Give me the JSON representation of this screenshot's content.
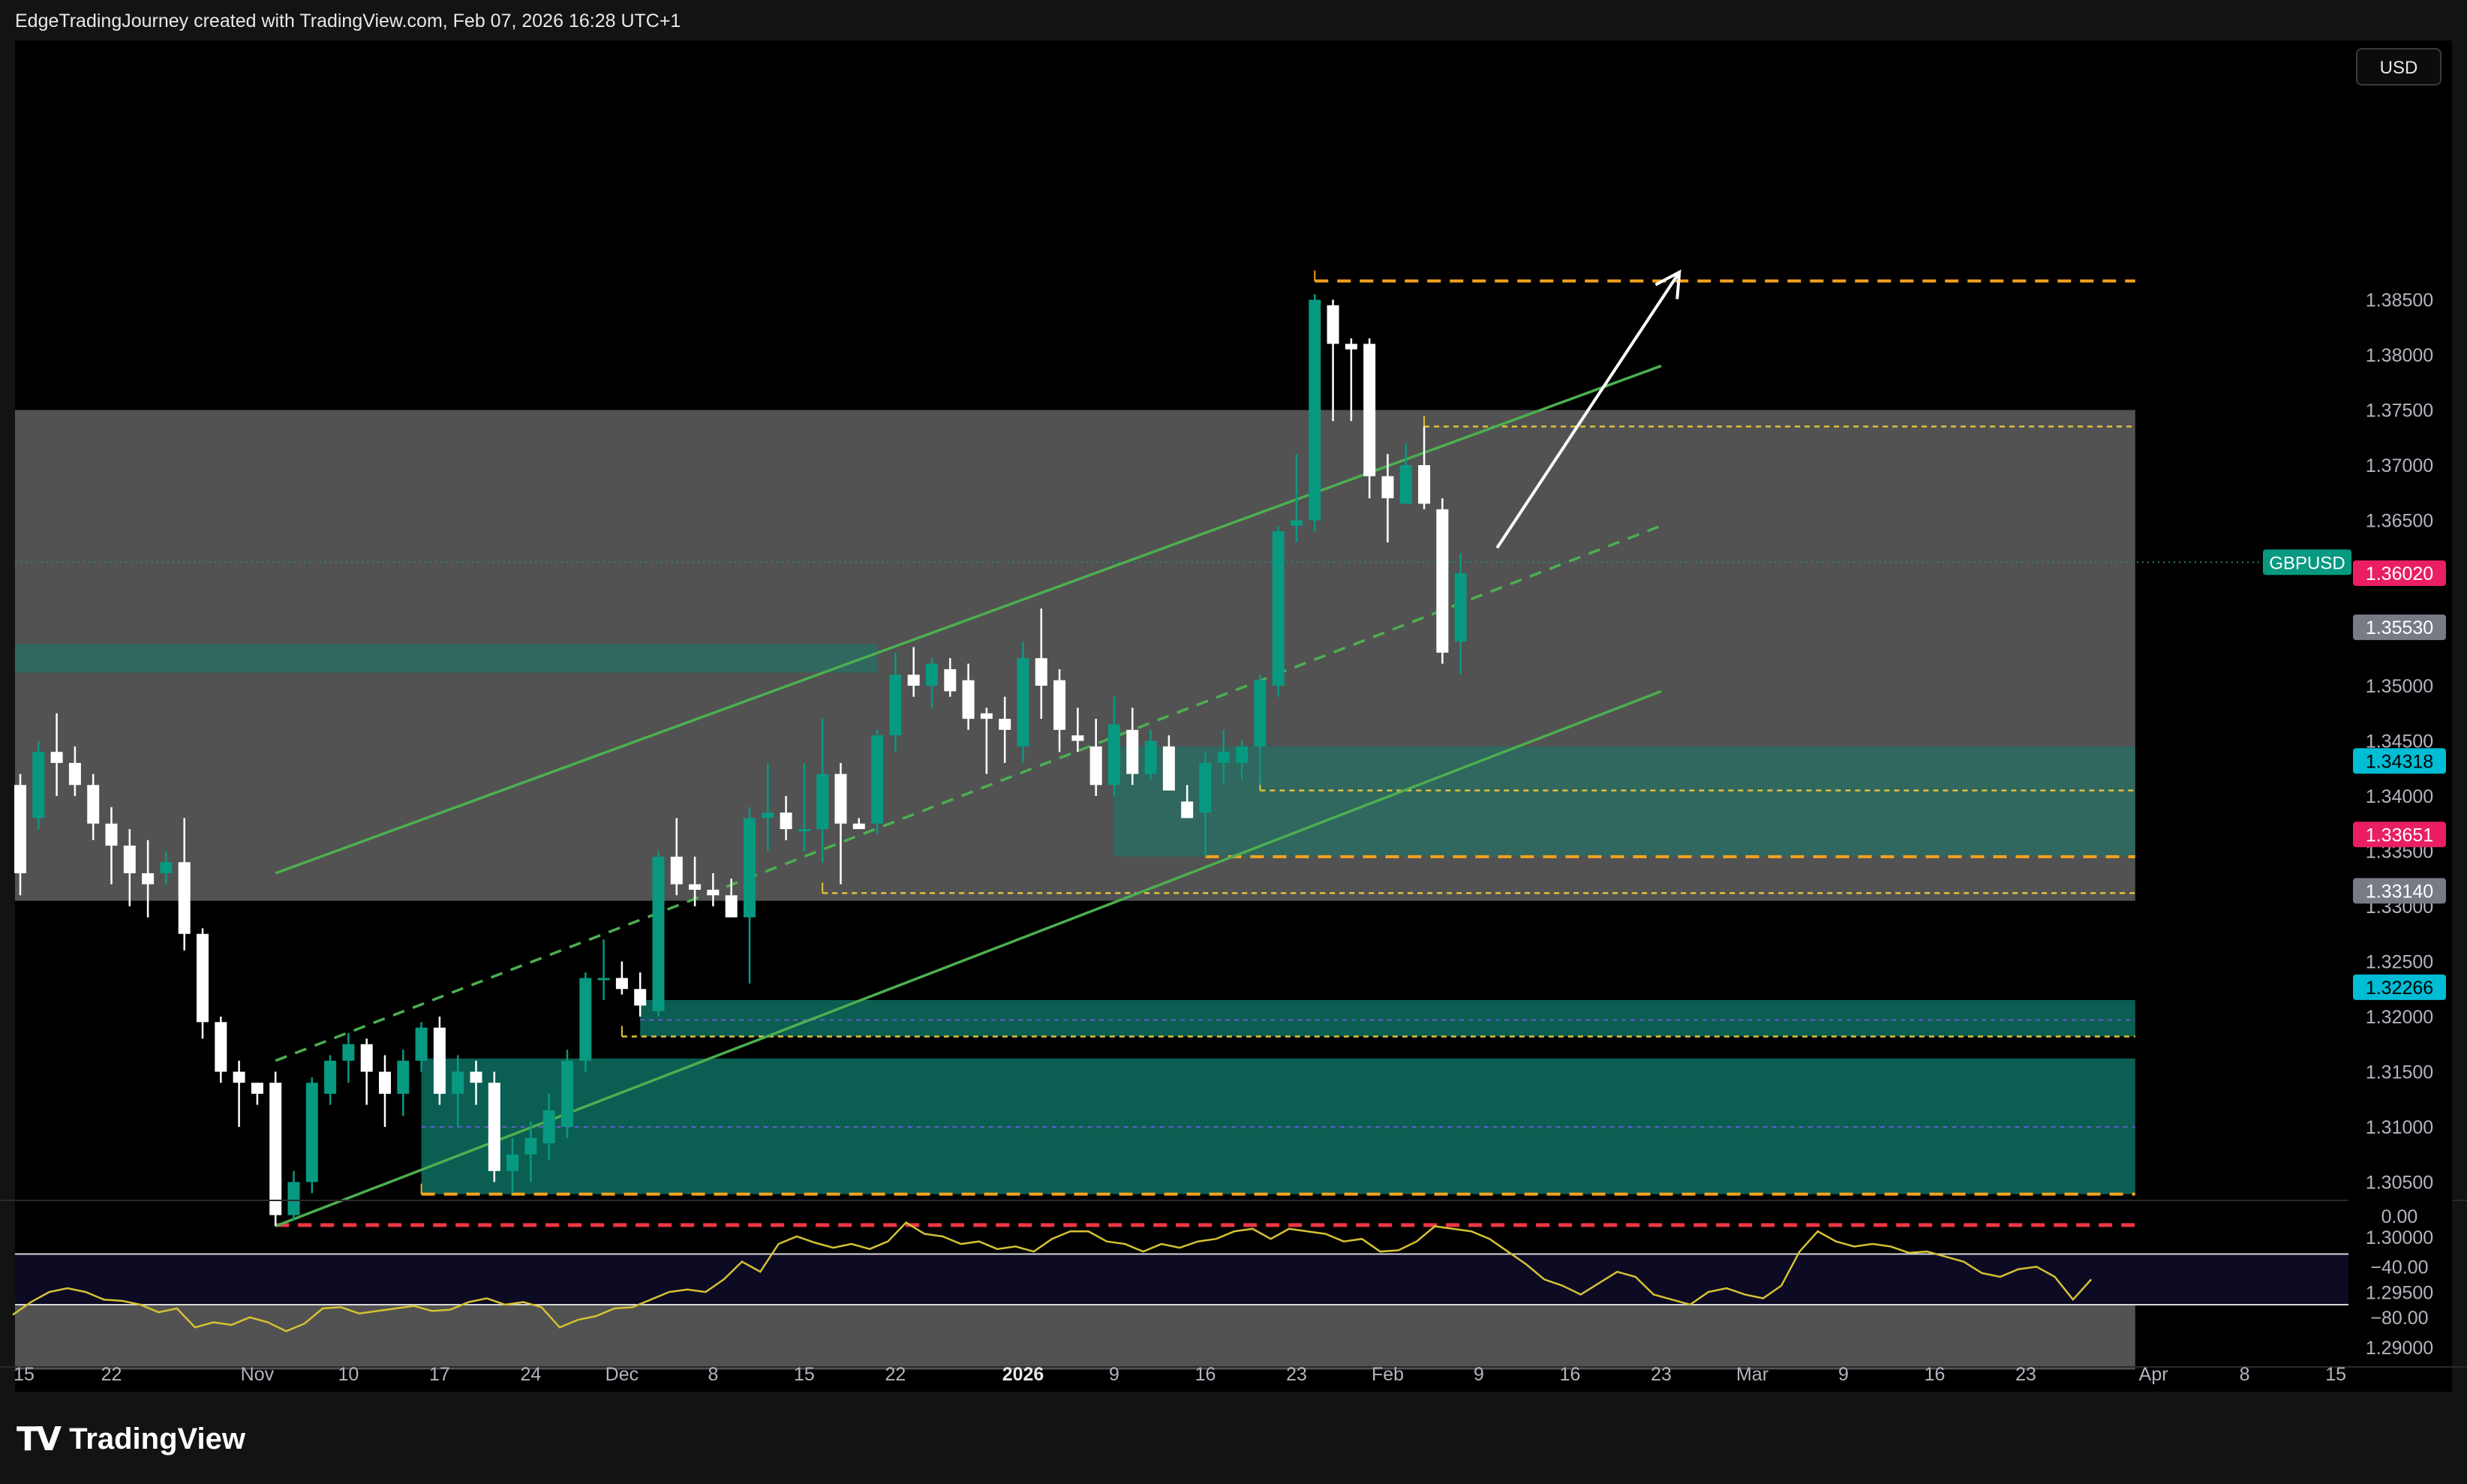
{
  "header": {
    "credit": "EdgeTradingJourney created with TradingView.com, Feb 07, 2026 16:28 UTC+1"
  },
  "toolbar": {
    "currency_button": "USD"
  },
  "branding": {
    "logo_text": "TradingView",
    "logo_icon": "tradingview-logo-icon"
  },
  "colors": {
    "background": "#000000",
    "zone_gray": "#525252",
    "zone_teal": "#0b5e52",
    "zone_teal_light": "#2a6b62",
    "candle_up": "#089981",
    "candle_down": "#ffffff",
    "channel_green": "#4caf50",
    "level_orange": "#f6a21e",
    "level_red": "#f23645",
    "rsi_line": "#d4c232"
  },
  "symbol": {
    "label": "GBPUSD",
    "last_price": "1.36020"
  },
  "price_axis": {
    "ticks": [
      {
        "value": 1.385,
        "label": "1.38500"
      },
      {
        "value": 1.38,
        "label": "1.38000"
      },
      {
        "value": 1.375,
        "label": "1.37500"
      },
      {
        "value": 1.37,
        "label": "1.37000"
      },
      {
        "value": 1.365,
        "label": "1.36500"
      },
      {
        "value": 1.35,
        "label": "1.35000"
      },
      {
        "value": 1.345,
        "label": "1.34500"
      },
      {
        "value": 1.34,
        "label": "1.34000"
      },
      {
        "value": 1.335,
        "label": "1.33500"
      },
      {
        "value": 1.33,
        "label": "1.33000"
      },
      {
        "value": 1.325,
        "label": "1.32500"
      },
      {
        "value": 1.32,
        "label": "1.32000"
      },
      {
        "value": 1.315,
        "label": "1.31500"
      },
      {
        "value": 1.31,
        "label": "1.31000"
      },
      {
        "value": 1.305,
        "label": "1.30500"
      },
      {
        "value": 1.3,
        "label": "1.30000"
      },
      {
        "value": 1.295,
        "label": "1.29500"
      },
      {
        "value": 1.29,
        "label": "1.29000"
      }
    ],
    "badges": [
      {
        "value": 1.3602,
        "label": "1.36020",
        "color": "#e91e63",
        "text_color": "#ffffff"
      },
      {
        "value": 1.3553,
        "label": "1.35530",
        "color": "#787b86",
        "text_color": "#ffffff"
      },
      {
        "value": 1.34318,
        "label": "1.34318",
        "color": "#00bcd4",
        "text_color": "#000000"
      },
      {
        "value": 1.33651,
        "label": "1.33651",
        "color": "#e91e63",
        "text_color": "#ffffff"
      },
      {
        "value": 1.3314,
        "label": "1.33140",
        "color": "#787b86",
        "text_color": "#ffffff"
      },
      {
        "value": 1.32266,
        "label": "1.32266",
        "color": "#00bcd4",
        "text_color": "#000000"
      }
    ]
  },
  "time_axis": {
    "labels": [
      {
        "idx": 0,
        "label": "15"
      },
      {
        "idx": 5,
        "label": "22"
      },
      {
        "idx": 13,
        "label": "Nov"
      },
      {
        "idx": 18,
        "label": "10"
      },
      {
        "idx": 23,
        "label": "17"
      },
      {
        "idx": 28,
        "label": "24"
      },
      {
        "idx": 33,
        "label": "Dec"
      },
      {
        "idx": 38,
        "label": "8"
      },
      {
        "idx": 43,
        "label": "15"
      },
      {
        "idx": 48,
        "label": "22"
      },
      {
        "idx": 55,
        "label": "2026",
        "bold": true
      },
      {
        "idx": 60,
        "label": "9"
      },
      {
        "idx": 65,
        "label": "16"
      },
      {
        "idx": 70,
        "label": "23"
      },
      {
        "idx": 75,
        "label": "Feb"
      },
      {
        "idx": 80,
        "label": "9"
      },
      {
        "idx": 85,
        "label": "16"
      },
      {
        "idx": 90,
        "label": "23"
      },
      {
        "idx": 95,
        "label": "Mar"
      },
      {
        "idx": 100,
        "label": "9"
      },
      {
        "idx": 105,
        "label": "16"
      },
      {
        "idx": 110,
        "label": "23"
      },
      {
        "idx": 117,
        "label": "Apr"
      },
      {
        "idx": 122,
        "label": "8"
      },
      {
        "idx": 127,
        "label": "15"
      }
    ]
  },
  "rsi_axis": {
    "ticks": [
      {
        "value": 0,
        "label": "0.00"
      },
      {
        "value": -40,
        "label": "−40.00"
      },
      {
        "value": -80,
        "label": "−80.00"
      }
    ],
    "band_upper": -30,
    "band_lower": -70
  },
  "chart_data": {
    "type": "candlestick",
    "symbol": "GBPUSD",
    "ylim": [
      1.288,
      1.3885
    ],
    "levels": [
      {
        "price": 1.3867,
        "style": "dashed",
        "color": "orange",
        "from_idx": 71,
        "to_idx": 116
      },
      {
        "price": 1.3735,
        "style": "dashed",
        "color": "yellow",
        "from_idx": 77,
        "to_idx": 116
      },
      {
        "price": 1.3405,
        "style": "dashed",
        "color": "yellow",
        "from_idx": 68,
        "to_idx": 116
      },
      {
        "price": 1.3345,
        "style": "dashed",
        "color": "orange",
        "from_idx": 65,
        "to_idx": 116
      },
      {
        "price": 1.3312,
        "style": "dashed",
        "color": "yellow",
        "from_idx": 44,
        "to_idx": 116
      },
      {
        "price": 1.3182,
        "style": "dashed",
        "color": "yellow",
        "from_idx": 33,
        "to_idx": 116
      },
      {
        "price": 1.3039,
        "style": "dashed",
        "color": "orange",
        "from_idx": 22,
        "to_idx": 116
      },
      {
        "price": 1.3011,
        "style": "dashed",
        "color": "red",
        "from_idx": 14,
        "to_idx": 116
      }
    ],
    "zones": [
      {
        "top": 1.375,
        "bottom": 1.3305,
        "from_idx": -1,
        "to_idx": 116,
        "color": "gray"
      },
      {
        "top": 1.3538,
        "bottom": 1.3512,
        "from_idx": -1,
        "to_idx": 47,
        "color": "teal_light"
      },
      {
        "top": 1.3445,
        "bottom": 1.3345,
        "from_idx": 60,
        "to_idx": 116,
        "color": "teal_light"
      },
      {
        "top": 1.3215,
        "bottom": 1.3182,
        "from_idx": 34,
        "to_idx": 116,
        "color": "teal"
      },
      {
        "top": 1.3162,
        "bottom": 1.3039,
        "from_idx": 22,
        "to_idx": 116,
        "color": "teal"
      },
      {
        "top": 1.2968,
        "bottom": 1.288,
        "from_idx": -1,
        "to_idx": 116,
        "color": "gray"
      }
    ],
    "channel": {
      "upper": [
        [
          14,
          1.333
        ],
        [
          90,
          1.379
        ]
      ],
      "middle": [
        [
          14,
          1.316
        ],
        [
          90,
          1.3645
        ]
      ],
      "lower": [
        [
          14,
          1.301
        ],
        [
          90,
          1.3495
        ]
      ]
    },
    "arrow": {
      "from": [
        81,
        1.3625
      ],
      "to": [
        91,
        1.3875
      ]
    },
    "candles": [
      {
        "o": 1.341,
        "h": 1.342,
        "l": 1.331,
        "c": 1.333
      },
      {
        "o": 1.338,
        "h": 1.345,
        "l": 1.337,
        "c": 1.344
      },
      {
        "o": 1.344,
        "h": 1.3475,
        "l": 1.34,
        "c": 1.343
      },
      {
        "o": 1.343,
        "h": 1.3445,
        "l": 1.34,
        "c": 1.341
      },
      {
        "o": 1.341,
        "h": 1.342,
        "l": 1.336,
        "c": 1.3375
      },
      {
        "o": 1.3375,
        "h": 1.339,
        "l": 1.332,
        "c": 1.3355
      },
      {
        "o": 1.3355,
        "h": 1.337,
        "l": 1.33,
        "c": 1.333
      },
      {
        "o": 1.333,
        "h": 1.336,
        "l": 1.329,
        "c": 1.332
      },
      {
        "o": 1.333,
        "h": 1.335,
        "l": 1.332,
        "c": 1.334
      },
      {
        "o": 1.334,
        "h": 1.338,
        "l": 1.326,
        "c": 1.3275
      },
      {
        "o": 1.3275,
        "h": 1.328,
        "l": 1.318,
        "c": 1.3195
      },
      {
        "o": 1.3195,
        "h": 1.32,
        "l": 1.314,
        "c": 1.315
      },
      {
        "o": 1.315,
        "h": 1.316,
        "l": 1.31,
        "c": 1.314
      },
      {
        "o": 1.314,
        "h": 1.314,
        "l": 1.312,
        "c": 1.313
      },
      {
        "o": 1.314,
        "h": 1.315,
        "l": 1.301,
        "c": 1.302
      },
      {
        "o": 1.302,
        "h": 1.306,
        "l": 1.3015,
        "c": 1.305
      },
      {
        "o": 1.305,
        "h": 1.3145,
        "l": 1.304,
        "c": 1.314
      },
      {
        "o": 1.313,
        "h": 1.3165,
        "l": 1.312,
        "c": 1.316
      },
      {
        "o": 1.316,
        "h": 1.3185,
        "l": 1.314,
        "c": 1.3175
      },
      {
        "o": 1.3175,
        "h": 1.318,
        "l": 1.312,
        "c": 1.315
      },
      {
        "o": 1.315,
        "h": 1.3165,
        "l": 1.31,
        "c": 1.313
      },
      {
        "o": 1.313,
        "h": 1.317,
        "l": 1.311,
        "c": 1.316
      },
      {
        "o": 1.316,
        "h": 1.3195,
        "l": 1.315,
        "c": 1.319
      },
      {
        "o": 1.319,
        "h": 1.32,
        "l": 1.312,
        "c": 1.313
      },
      {
        "o": 1.313,
        "h": 1.3165,
        "l": 1.31,
        "c": 1.315
      },
      {
        "o": 1.315,
        "h": 1.316,
        "l": 1.312,
        "c": 1.314
      },
      {
        "o": 1.314,
        "h": 1.315,
        "l": 1.305,
        "c": 1.306
      },
      {
        "o": 1.306,
        "h": 1.309,
        "l": 1.304,
        "c": 1.3075
      },
      {
        "o": 1.3075,
        "h": 1.3105,
        "l": 1.305,
        "c": 1.309
      },
      {
        "o": 1.3085,
        "h": 1.313,
        "l": 1.307,
        "c": 1.3115
      },
      {
        "o": 1.31,
        "h": 1.317,
        "l": 1.309,
        "c": 1.316
      },
      {
        "o": 1.316,
        "h": 1.324,
        "l": 1.315,
        "c": 1.3235
      },
      {
        "o": 1.3235,
        "h": 1.327,
        "l": 1.3215,
        "c": 1.3235
      },
      {
        "o": 1.3235,
        "h": 1.325,
        "l": 1.322,
        "c": 1.3225
      },
      {
        "o": 1.3225,
        "h": 1.324,
        "l": 1.32,
        "c": 1.321
      },
      {
        "o": 1.3205,
        "h": 1.335,
        "l": 1.32,
        "c": 1.3345
      },
      {
        "o": 1.3345,
        "h": 1.338,
        "l": 1.331,
        "c": 1.332
      },
      {
        "o": 1.332,
        "h": 1.3345,
        "l": 1.33,
        "c": 1.3315
      },
      {
        "o": 1.3315,
        "h": 1.333,
        "l": 1.33,
        "c": 1.331
      },
      {
        "o": 1.331,
        "h": 1.3325,
        "l": 1.329,
        "c": 1.329
      },
      {
        "o": 1.329,
        "h": 1.339,
        "l": 1.323,
        "c": 1.338
      },
      {
        "o": 1.338,
        "h": 1.343,
        "l": 1.335,
        "c": 1.3385
      },
      {
        "o": 1.3385,
        "h": 1.34,
        "l": 1.336,
        "c": 1.337
      },
      {
        "o": 1.337,
        "h": 1.343,
        "l": 1.335,
        "c": 1.337
      },
      {
        "o": 1.337,
        "h": 1.347,
        "l": 1.334,
        "c": 1.342
      },
      {
        "o": 1.342,
        "h": 1.343,
        "l": 1.332,
        "c": 1.3375
      },
      {
        "o": 1.3375,
        "h": 1.338,
        "l": 1.337,
        "c": 1.337
      },
      {
        "o": 1.3375,
        "h": 1.346,
        "l": 1.3365,
        "c": 1.3455
      },
      {
        "o": 1.3455,
        "h": 1.353,
        "l": 1.344,
        "c": 1.351
      },
      {
        "o": 1.351,
        "h": 1.3535,
        "l": 1.349,
        "c": 1.35
      },
      {
        "o": 1.35,
        "h": 1.3525,
        "l": 1.348,
        "c": 1.352
      },
      {
        "o": 1.3515,
        "h": 1.3525,
        "l": 1.349,
        "c": 1.3495
      },
      {
        "o": 1.3505,
        "h": 1.352,
        "l": 1.346,
        "c": 1.347
      },
      {
        "o": 1.3475,
        "h": 1.348,
        "l": 1.342,
        "c": 1.347
      },
      {
        "o": 1.347,
        "h": 1.349,
        "l": 1.343,
        "c": 1.346
      },
      {
        "o": 1.3445,
        "h": 1.354,
        "l": 1.343,
        "c": 1.3525
      },
      {
        "o": 1.3525,
        "h": 1.357,
        "l": 1.347,
        "c": 1.35
      },
      {
        "o": 1.3505,
        "h": 1.3515,
        "l": 1.344,
        "c": 1.346
      },
      {
        "o": 1.3455,
        "h": 1.348,
        "l": 1.344,
        "c": 1.345
      },
      {
        "o": 1.3445,
        "h": 1.347,
        "l": 1.34,
        "c": 1.341
      },
      {
        "o": 1.341,
        "h": 1.349,
        "l": 1.34,
        "c": 1.3465
      },
      {
        "o": 1.346,
        "h": 1.348,
        "l": 1.341,
        "c": 1.342
      },
      {
        "o": 1.342,
        "h": 1.346,
        "l": 1.3415,
        "c": 1.345
      },
      {
        "o": 1.3445,
        "h": 1.3455,
        "l": 1.341,
        "c": 1.3405
      },
      {
        "o": 1.3395,
        "h": 1.341,
        "l": 1.338,
        "c": 1.338
      },
      {
        "o": 1.3385,
        "h": 1.344,
        "l": 1.3345,
        "c": 1.343
      },
      {
        "o": 1.343,
        "h": 1.346,
        "l": 1.341,
        "c": 1.344
      },
      {
        "o": 1.343,
        "h": 1.345,
        "l": 1.3415,
        "c": 1.3445
      },
      {
        "o": 1.3445,
        "h": 1.351,
        "l": 1.341,
        "c": 1.3505
      },
      {
        "o": 1.35,
        "h": 1.3645,
        "l": 1.349,
        "c": 1.364
      },
      {
        "o": 1.3645,
        "h": 1.371,
        "l": 1.363,
        "c": 1.365
      },
      {
        "o": 1.365,
        "h": 1.3855,
        "l": 1.364,
        "c": 1.385
      },
      {
        "o": 1.3845,
        "h": 1.385,
        "l": 1.374,
        "c": 1.381
      },
      {
        "o": 1.381,
        "h": 1.3815,
        "l": 1.374,
        "c": 1.3805
      },
      {
        "o": 1.381,
        "h": 1.3815,
        "l": 1.367,
        "c": 1.369
      },
      {
        "o": 1.369,
        "h": 1.371,
        "l": 1.363,
        "c": 1.367
      },
      {
        "o": 1.3665,
        "h": 1.372,
        "l": 1.3665,
        "c": 1.37
      },
      {
        "o": 1.37,
        "h": 1.3735,
        "l": 1.366,
        "c": 1.3665
      },
      {
        "o": 1.366,
        "h": 1.367,
        "l": 1.352,
        "c": 1.353
      },
      {
        "o": 1.354,
        "h": 1.362,
        "l": 1.351,
        "c": 1.3602
      }
    ],
    "rsi": [
      -78,
      -68,
      -60,
      -57,
      -60,
      -66,
      -67,
      -70,
      -76,
      -73,
      -88,
      -84,
      -86,
      -80,
      -84,
      -91,
      -85,
      -73,
      -72,
      -77,
      -75,
      -73,
      -71,
      -75,
      -74,
      -68,
      -65,
      -70,
      -68,
      -72,
      -88,
      -82,
      -79,
      -73,
      -72,
      -66,
      -60,
      -58,
      -60,
      -50,
      -36,
      -44,
      -22,
      -16,
      -21,
      -25,
      -22,
      -26,
      -20,
      -5,
      -14,
      -16,
      -22,
      -20,
      -26,
      -24,
      -28,
      -18,
      -12,
      -12,
      -20,
      -22,
      -28,
      -22,
      -25,
      -20,
      -18,
      -12,
      -10,
      -18,
      -10,
      -12,
      -14,
      -20,
      -18,
      -28,
      -27,
      -20,
      -8,
      -10,
      -12,
      -18,
      -28,
      -38,
      -50,
      -55,
      -62,
      -53,
      -44,
      -48,
      -62,
      -66,
      -70,
      -60,
      -57,
      -62,
      -65,
      -55,
      -28,
      -12,
      -20,
      -24,
      -22,
      -24,
      -29,
      -28,
      -32,
      -36,
      -45,
      -48,
      -42,
      -40,
      -48,
      -66,
      -50
    ]
  }
}
